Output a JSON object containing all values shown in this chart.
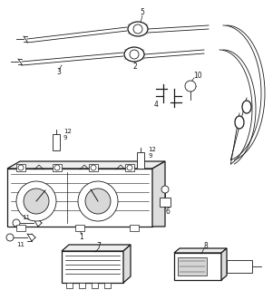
{
  "bg_color": "#ffffff",
  "line_color": "#1a1a1a",
  "fig_width": 3.01,
  "fig_height": 3.2,
  "dpi": 100
}
